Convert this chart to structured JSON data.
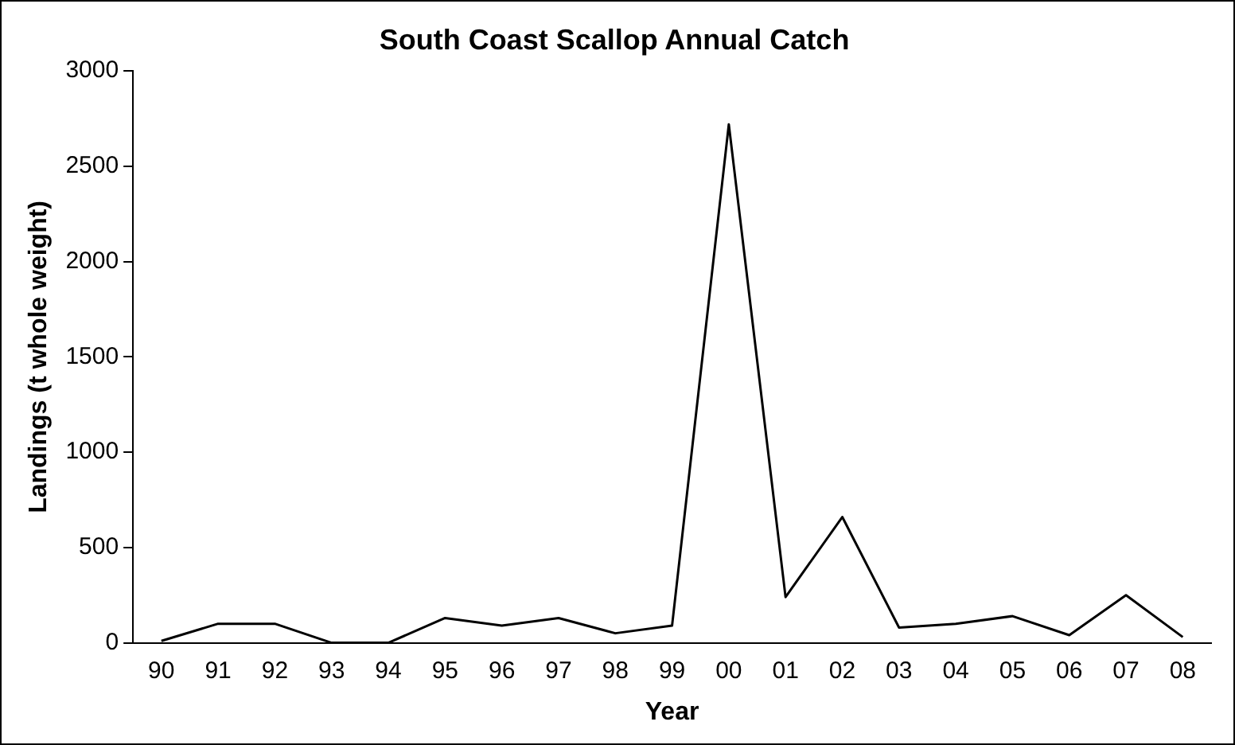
{
  "chart_data": {
    "type": "line",
    "title": "South Coast Scallop Annual Catch",
    "xlabel": "Year",
    "ylabel": "Landings (t whole weight)",
    "categories": [
      "90",
      "91",
      "92",
      "93",
      "94",
      "95",
      "96",
      "97",
      "98",
      "99",
      "00",
      "01",
      "02",
      "03",
      "04",
      "05",
      "06",
      "07",
      "08"
    ],
    "series": [
      {
        "color": "#000000",
        "values": [
          10,
          100,
          100,
          0,
          0,
          130,
          90,
          130,
          50,
          90,
          2720,
          240,
          660,
          80,
          100,
          140,
          40,
          250,
          30
        ]
      }
    ],
    "ylim": [
      0,
      3000
    ],
    "yticks": [
      0,
      500,
      1000,
      1500,
      2000,
      2500,
      3000
    ],
    "grid": false,
    "legend": false,
    "marker": "none",
    "line_style": "solid"
  }
}
